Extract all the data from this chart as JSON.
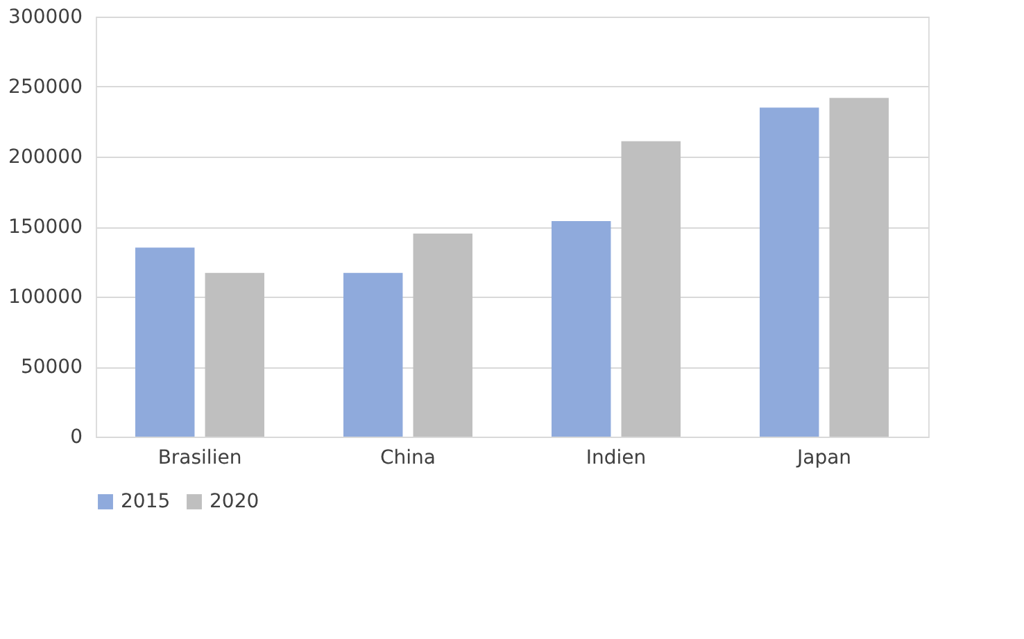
{
  "chart_data": {
    "type": "bar",
    "categories": [
      "Brasilien",
      "China",
      "Indien",
      "Japan"
    ],
    "series": [
      {
        "name": "2015",
        "color": "#8faadc",
        "values": [
          135000,
          117000,
          154000,
          235000
        ]
      },
      {
        "name": "2020",
        "color": "#bfbfbf",
        "values": [
          117000,
          145000,
          211000,
          242000
        ]
      }
    ],
    "ylim": [
      0,
      300000
    ],
    "yticks": [
      0,
      50000,
      100000,
      150000,
      200000,
      250000,
      300000
    ],
    "grid": "y",
    "legend": "bottom"
  }
}
